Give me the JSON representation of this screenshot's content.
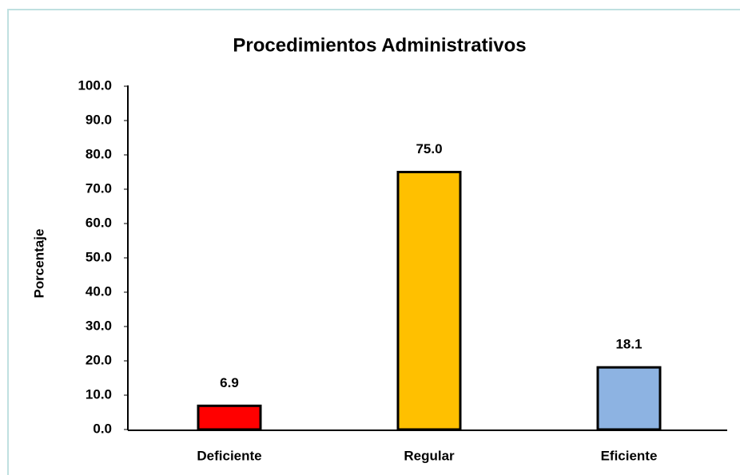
{
  "chart_data": {
    "type": "bar",
    "title": "Procedimientos Administrativos",
    "y_label": "Porcentaje",
    "categories": [
      "Deficiente",
      "Regular",
      "Eficiente"
    ],
    "values": [
      6.9,
      75.0,
      18.1
    ],
    "value_labels": [
      "6.9",
      "75.0",
      "18.1"
    ],
    "colors": [
      "#ff0000",
      "#ffc000",
      "#8db3e2"
    ],
    "ylim": [
      0,
      100
    ],
    "yticks": [
      {
        "value": 0,
        "label": "0.0"
      },
      {
        "value": 10,
        "label": "10.0"
      },
      {
        "value": 20,
        "label": "20.0"
      },
      {
        "value": 30,
        "label": "30.0"
      },
      {
        "value": 40,
        "label": "40.0"
      },
      {
        "value": 50,
        "label": "50.0"
      },
      {
        "value": 60,
        "label": "60.0"
      },
      {
        "value": 70,
        "label": "70.0"
      },
      {
        "value": 80,
        "label": "80.0"
      },
      {
        "value": 90,
        "label": "90.0"
      },
      {
        "value": 100,
        "label": "100.0"
      }
    ],
    "grid": false
  }
}
